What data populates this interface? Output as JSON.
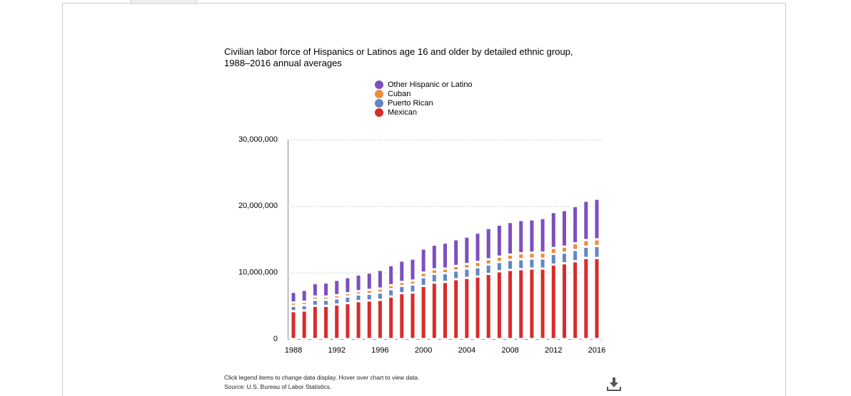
{
  "chart_data": {
    "type": "stacked-bar",
    "title": "Civilian labor force of Hispanics or Latinos age 16 and older by detailed ethnic group, 1988–2016 annual averages",
    "categories": [
      "1988",
      null,
      null,
      null,
      "1992",
      null,
      null,
      null,
      "1996",
      null,
      null,
      null,
      "2000",
      null,
      null,
      null,
      "2004",
      null,
      null,
      null,
      "2008",
      null,
      null,
      null,
      "2012",
      null,
      null,
      null,
      "2016"
    ],
    "series": [
      {
        "name": "Mexican",
        "color": "#d92b2b",
        "values": [
          4200000,
          4300000,
          5000000,
          5000000,
          5200000,
          5400000,
          5700000,
          5800000,
          5900000,
          6400000,
          6900000,
          7000000,
          8000000,
          8500000,
          8600000,
          9000000,
          9200000,
          9400000,
          9800000,
          10200000,
          10400000,
          10500000,
          10600000,
          10600000,
          11200000,
          11400000,
          11700000,
          12200000,
          12200000
        ]
      },
      {
        "name": "Puerto Rican",
        "color": "#6287c4",
        "values": [
          800000,
          800000,
          900000,
          900000,
          900000,
          1000000,
          1000000,
          1000000,
          1100000,
          1100000,
          1100000,
          1200000,
          1300000,
          1300000,
          1300000,
          1300000,
          1400000,
          1400000,
          1400000,
          1400000,
          1500000,
          1500000,
          1500000,
          1500000,
          1600000,
          1600000,
          1700000,
          1700000,
          1800000
        ]
      },
      {
        "name": "Cuban",
        "color": "#ef8c3a",
        "values": [
          500000,
          500000,
          500000,
          500000,
          500000,
          500000,
          500000,
          600000,
          600000,
          600000,
          600000,
          600000,
          700000,
          700000,
          700000,
          700000,
          700000,
          800000,
          800000,
          800000,
          800000,
          900000,
          900000,
          900000,
          900000,
          900000,
          1000000,
          1000000,
          1000000
        ]
      },
      {
        "name": "Other Hispanic or Latino",
        "color": "#7c4fbf",
        "values": [
          1600000,
          1800000,
          2000000,
          2100000,
          2300000,
          2400000,
          2500000,
          2600000,
          2800000,
          3000000,
          3200000,
          3300000,
          3600000,
          3700000,
          3900000,
          4000000,
          4100000,
          4400000,
          4700000,
          4800000,
          4900000,
          5000000,
          5000000,
          5200000,
          5400000,
          5500000,
          5600000,
          5900000,
          6100000
        ]
      }
    ],
    "ylim": [
      0,
      30000000
    ],
    "yticks": [
      0,
      {
        "value": 10000000,
        "label": "10,000,000"
      },
      {
        "value": 20000000,
        "label": "20,000,000"
      },
      {
        "value": 30000000,
        "label": "30,000,000"
      }
    ],
    "grid": true,
    "notes": [
      "Click legend items to change data display. Hover over chart to view data.",
      "Source: U.S. Bureau of Labor Statistics."
    ]
  }
}
